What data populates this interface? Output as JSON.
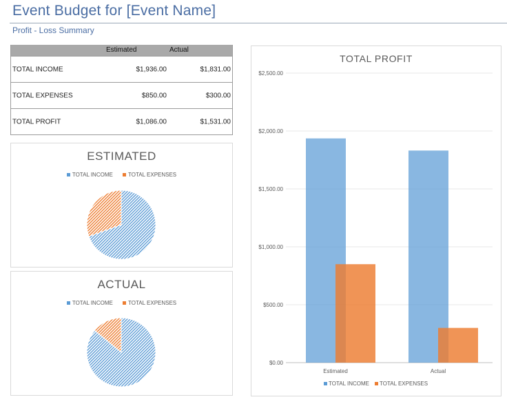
{
  "header": {
    "title": "Event Budget for [Event Name]",
    "subtitle": "Profit - Loss Summary"
  },
  "summary_table": {
    "columns": [
      "Estimated",
      "Actual"
    ],
    "rows": [
      {
        "label": "TOTAL INCOME",
        "estimated": "$1,936.00",
        "actual": "$1,831.00"
      },
      {
        "label": "TOTAL EXPENSES",
        "estimated": "$850.00",
        "actual": "$300.00"
      },
      {
        "label": "TOTAL PROFIT",
        "estimated": "$1,086.00",
        "actual": "$1,531.00"
      }
    ]
  },
  "colors": {
    "income": "#5b9bd5",
    "expenses": "#ed7d31",
    "grid": "#e7e7e7",
    "text": "#595959"
  },
  "chart_data": [
    {
      "type": "pie",
      "title": "ESTIMATED",
      "legend": [
        "TOTAL INCOME",
        "TOTAL EXPENSES"
      ],
      "categories": [
        "TOTAL INCOME",
        "TOTAL EXPENSES"
      ],
      "values": [
        1936,
        850
      ]
    },
    {
      "type": "pie",
      "title": "ACTUAL",
      "legend": [
        "TOTAL INCOME",
        "TOTAL EXPENSES"
      ],
      "categories": [
        "TOTAL INCOME",
        "TOTAL EXPENSES"
      ],
      "values": [
        1831,
        300
      ]
    },
    {
      "type": "bar",
      "title": "TOTAL PROFIT",
      "categories": [
        "Estimated",
        "Actual"
      ],
      "series": [
        {
          "name": "TOTAL INCOME",
          "values": [
            1936,
            1831
          ]
        },
        {
          "name": "TOTAL EXPENSES",
          "values": [
            850,
            300
          ]
        }
      ],
      "ylim": [
        0,
        2500
      ],
      "yticks": [
        "$0.00",
        "$500.00",
        "$1,000.00",
        "$1,500.00",
        "$2,000.00",
        "$2,500.00"
      ],
      "legend": [
        "TOTAL INCOME",
        "TOTAL EXPENSES"
      ]
    }
  ]
}
